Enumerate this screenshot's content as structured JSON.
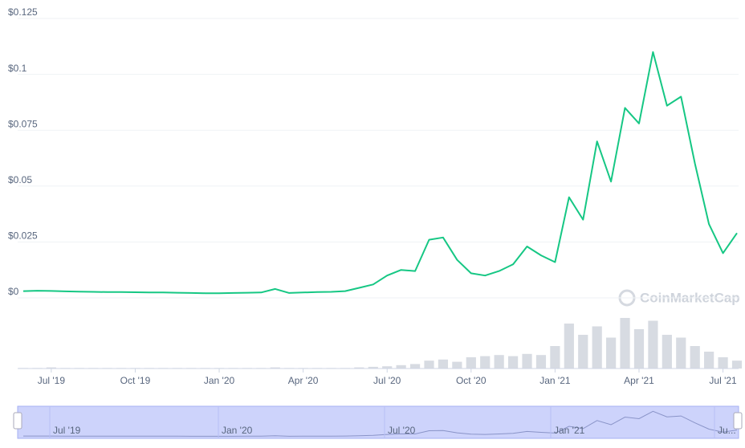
{
  "chart_data": {
    "type": "line",
    "categories": [
      null,
      null,
      "Jul '19",
      null,
      null,
      null,
      null,
      null,
      "Oct '19",
      null,
      null,
      null,
      null,
      null,
      "Jan '20",
      null,
      null,
      null,
      null,
      null,
      "Apr '20",
      null,
      null,
      null,
      null,
      null,
      "Jul '20",
      null,
      null,
      null,
      null,
      null,
      "Oct '20",
      null,
      null,
      null,
      null,
      null,
      "Jan '21",
      null,
      null,
      null,
      null,
      null,
      "Apr '21",
      null,
      null,
      null,
      null,
      null,
      "Jul '21",
      null
    ],
    "series": [
      {
        "color": "#16c784",
        "values": [
          0.003,
          0.0032,
          0.0031,
          0.0029,
          0.0028,
          0.0027,
          0.0026,
          0.0026,
          0.0025,
          0.0024,
          0.0024,
          0.0023,
          0.0022,
          0.0021,
          0.0021,
          0.0022,
          0.0023,
          0.0024,
          0.004,
          0.0022,
          0.0024,
          0.0026,
          0.0027,
          0.003,
          0.0045,
          0.006,
          0.01,
          0.0125,
          0.012,
          0.026,
          0.027,
          0.017,
          0.011,
          0.01,
          0.012,
          0.015,
          0.023,
          0.019,
          0.016,
          0.045,
          0.035,
          0.07,
          0.052,
          0.085,
          0.078,
          0.11,
          0.086,
          0.09,
          0.06,
          0.033,
          0.02,
          0.029
        ]
      }
    ],
    "volume": [
      1,
      1,
      2,
      1,
      1,
      1,
      1,
      1,
      1,
      1,
      1,
      1,
      1,
      1,
      1,
      1,
      1,
      1,
      2,
      1,
      1,
      1,
      1,
      1,
      2,
      3,
      4,
      6,
      8,
      14,
      16,
      12,
      20,
      22,
      24,
      22,
      26,
      24,
      40,
      80,
      60,
      75,
      55,
      90,
      70,
      85,
      60,
      55,
      40,
      30,
      20,
      14
    ],
    "volume_lim": [
      0,
      100
    ],
    "ylim": [
      0,
      0.125
    ],
    "yticks": [
      {
        "value": 0,
        "label": "$0"
      },
      {
        "value": 0.025,
        "label": "$0.025"
      },
      {
        "value": 0.05,
        "label": "$0.05"
      },
      {
        "value": 0.075,
        "label": "$0.075"
      },
      {
        "value": 0.1,
        "label": "$0.1"
      },
      {
        "value": 0.125,
        "label": "$0.125"
      }
    ],
    "grid": true,
    "watermark": "CoinMarketCap",
    "navigator_labels": [
      "Jul '19",
      "Jan '20",
      "Jul '20",
      "Jan '21",
      "Ju..."
    ]
  }
}
